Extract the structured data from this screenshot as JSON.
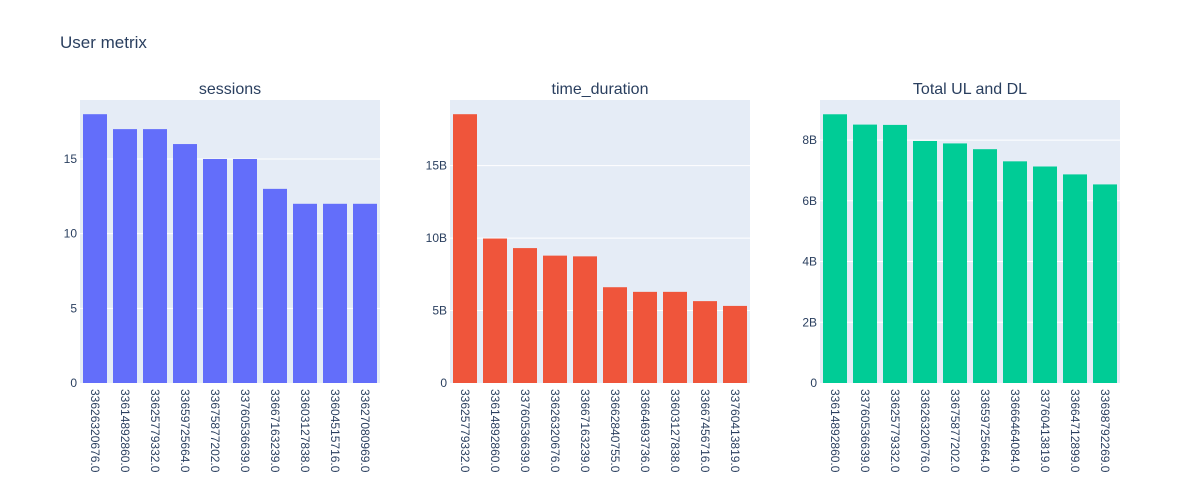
{
  "title": "User metrix",
  "chart_data": [
    {
      "type": "bar",
      "title": "sessions",
      "color": "#636efa",
      "categories": [
        "33626320676.0",
        "33614892860.0",
        "33625779332.0",
        "33659725664.0",
        "33675877202.0",
        "33760536639.0",
        "33667163239.0",
        "33603127838.0",
        "33604515716.0",
        "33627080969.0"
      ],
      "values": [
        18,
        17,
        17,
        16,
        15,
        15,
        13,
        12,
        12,
        12
      ],
      "ylim": [
        0,
        18.95
      ],
      "yticks": [
        {
          "v": 0,
          "label": "0"
        },
        {
          "v": 5,
          "label": "5"
        },
        {
          "v": 10,
          "label": "10"
        },
        {
          "v": 15,
          "label": "15"
        }
      ]
    },
    {
      "type": "bar",
      "title": "time_duration",
      "color": "#ef553b",
      "categories": [
        "33625779332.0",
        "33614892860.0",
        "33760536639.0",
        "33626320676.0",
        "33667163239.0",
        "33662840755.0",
        "33664693736.0",
        "33603127838.0",
        "33667456716.0",
        "33760413819.0"
      ],
      "values": [
        18550000000,
        9970000000,
        9310000000,
        8790000000,
        8740000000,
        6610000000,
        6290000000,
        6290000000,
        5650000000,
        5320000000
      ],
      "ylim": [
        0,
        19530000000
      ],
      "yticks": [
        {
          "v": 0,
          "label": "0"
        },
        {
          "v": 5000000000,
          "label": "5B"
        },
        {
          "v": 10000000000,
          "label": "10B"
        },
        {
          "v": 15000000000,
          "label": "15B"
        }
      ]
    },
    {
      "type": "bar",
      "title": "Total UL and DL",
      "color": "#00cc96",
      "categories": [
        "33614892860.0",
        "33760536639.0",
        "33625779332.0",
        "33626320676.0",
        "33675877202.0",
        "33659725664.0",
        "33666464084.0",
        "33760413819.0",
        "33664712899.0",
        "33698792269.0"
      ],
      "values": [
        8850000000,
        8510000000,
        8500000000,
        7970000000,
        7890000000,
        7700000000,
        7300000000,
        7130000000,
        6870000000,
        6540000000
      ],
      "ylim": [
        0,
        9320000000
      ],
      "yticks": [
        {
          "v": 0,
          "label": "0"
        },
        {
          "v": 2000000000,
          "label": "2B"
        },
        {
          "v": 4000000000,
          "label": "4B"
        },
        {
          "v": 6000000000,
          "label": "6B"
        },
        {
          "v": 8000000000,
          "label": "8B"
        }
      ]
    }
  ]
}
